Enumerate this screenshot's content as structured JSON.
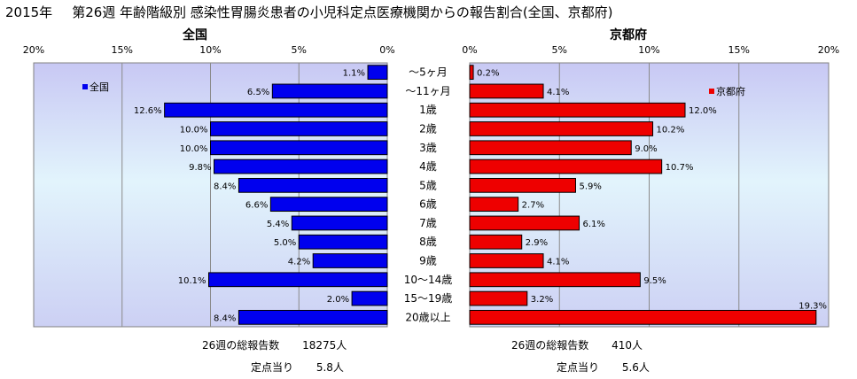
{
  "title": {
    "year": "2015年",
    "main": "第26週 年齢階級別 感染性胃腸炎患者の小児科定点医療機関からの報告割合(全国、京都府)"
  },
  "chart_data": {
    "type": "bar",
    "orientation": "horizontal",
    "categories": [
      "～5ヶ月",
      "～11ヶ月",
      "1歳",
      "2歳",
      "3歳",
      "4歳",
      "5歳",
      "6歳",
      "7歳",
      "8歳",
      "9歳",
      "10～14歳",
      "15～19歳",
      "20歳以上"
    ],
    "axis_ticks": [
      "0%",
      "5%",
      "10%",
      "15%",
      "20%"
    ],
    "xlim": [
      0,
      20
    ],
    "grid": true,
    "panels": [
      {
        "title": "全国",
        "legend": "全国",
        "color": "#0000ee",
        "values": [
          1.1,
          6.5,
          12.6,
          10.0,
          10.0,
          9.8,
          8.4,
          6.6,
          5.4,
          5.0,
          4.2,
          10.1,
          2.0,
          8.4
        ],
        "labels": [
          "1.1%",
          "6.5%",
          "12.6%",
          "10.0%",
          "10.0%",
          "9.8%",
          "8.4%",
          "6.6%",
          "5.4%",
          "5.0%",
          "4.2%",
          "10.1%",
          "2.0%",
          "8.4%"
        ],
        "stats": {
          "total_label": "26週の総報告数",
          "total_value": "18275人",
          "per_label": "定点当り",
          "per_value": "5.8人"
        }
      },
      {
        "title": "京都府",
        "legend": "京都府",
        "color": "#ee0000",
        "values": [
          0.2,
          4.1,
          12.0,
          10.2,
          9.0,
          10.7,
          5.9,
          2.7,
          6.1,
          2.9,
          4.1,
          9.5,
          3.2,
          19.3
        ],
        "labels": [
          "0.2%",
          "4.1%",
          "12.0%",
          "10.2%",
          "9.0%",
          "10.7%",
          "5.9%",
          "2.7%",
          "6.1%",
          "2.9%",
          "4.1%",
          "9.5%",
          "3.2%",
          "19.3%"
        ],
        "stats": {
          "total_label": "26週の総報告数",
          "total_value": "410人",
          "per_label": "定点当り",
          "per_value": "5.6人"
        }
      }
    ]
  }
}
